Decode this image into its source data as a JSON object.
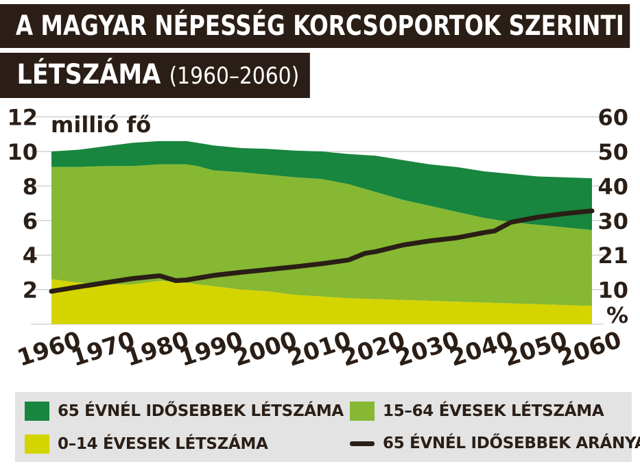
{
  "title": {
    "line1": "A MAGYAR NÉPESSÉG KORCSOPORTOK SZERINTI",
    "line2": "LÉTSZÁMA",
    "line2_paren": "(1960–2060)"
  },
  "legend": {
    "item_65plus_count": "65 ÉVNÉL IDŐSEBBEK LÉTSZÁMA",
    "item_15_64_count": "15–64 ÉVESEK LÉTSZÁMA",
    "item_0_14_count": "0–14 ÉVESEK LÉTSZÁMA",
    "item_65plus_share": "65 ÉVNÉL IDŐSEBBEK ARÁNYA"
  },
  "colors": {
    "dark_green": "#18863e",
    "mid_green": "#86b833",
    "yellow": "#d4d400",
    "line": "#2a1e16",
    "title_bg": "#2a1e16",
    "legend_bg": "#e3e3e3",
    "grid": "#bdbdbd"
  },
  "chart_data": {
    "type": "area",
    "left_axis": {
      "unit_label": "millió fő",
      "ticks": [
        "2",
        "4",
        "6",
        "8",
        "10",
        "12"
      ],
      "range": [
        0,
        12
      ]
    },
    "right_axis": {
      "unit_label": "%",
      "ticks": [
        "10",
        "21",
        "30",
        "40",
        "50",
        "60"
      ],
      "range": [
        0,
        60
      ]
    },
    "x_ticks": [
      "1960",
      "1970",
      "1980",
      "1990",
      "2000",
      "2010",
      "2020",
      "2030",
      "2040",
      "2050",
      "2060"
    ],
    "x": [
      1960,
      1965,
      1970,
      1975,
      1980,
      1985,
      1987,
      1990,
      1995,
      2000,
      2005,
      2010,
      2015,
      2020,
      2025,
      2030,
      2035,
      2040,
      2045,
      2050,
      2055,
      2060
    ],
    "series": [
      {
        "name": "0–14 ÉVESEK LÉTSZÁMA",
        "values": [
          2.6,
          2.4,
          2.3,
          2.3,
          2.5,
          2.4,
          2.3,
          2.2,
          2.0,
          1.9,
          1.7,
          1.6,
          1.5,
          1.45,
          1.4,
          1.35,
          1.3,
          1.25,
          1.2,
          1.15,
          1.1,
          1.05
        ]
      },
      {
        "name": "15–64 ÉVESEK LÉTSZÁMA",
        "values": [
          6.5,
          6.7,
          6.85,
          6.85,
          6.75,
          6.85,
          6.85,
          6.7,
          6.8,
          6.75,
          6.8,
          6.8,
          6.6,
          6.2,
          5.8,
          5.5,
          5.2,
          4.9,
          4.7,
          4.6,
          4.5,
          4.4
        ]
      },
      {
        "name": "65 ÉVNÉL IDŐSEBBEK LÉTSZÁMA",
        "values": [
          0.9,
          1.0,
          1.15,
          1.35,
          1.35,
          1.35,
          1.35,
          1.45,
          1.4,
          1.5,
          1.55,
          1.6,
          1.75,
          2.1,
          2.3,
          2.4,
          2.6,
          2.7,
          2.8,
          2.8,
          2.9,
          3.0
        ]
      },
      {
        "name": "65 ÉVNÉL IDŐSEBBEK ARÁNYA",
        "axis": "right",
        "x": [
          1960,
          1965,
          1970,
          1975,
          1980,
          1983,
          1985,
          1990,
          1995,
          2000,
          2005,
          2010,
          2015,
          2018,
          2020,
          2025,
          2030,
          2035,
          2040,
          2042,
          2045,
          2050,
          2055,
          2060
        ],
        "values": [
          9.5,
          10.8,
          12.0,
          13.2,
          14.0,
          12.6,
          12.8,
          14.1,
          15.0,
          15.8,
          16.6,
          17.5,
          18.6,
          20.5,
          21.0,
          22.9,
          24.1,
          25.0,
          26.5,
          27.0,
          29.5,
          31.0,
          32.0,
          32.8
        ]
      }
    ]
  }
}
